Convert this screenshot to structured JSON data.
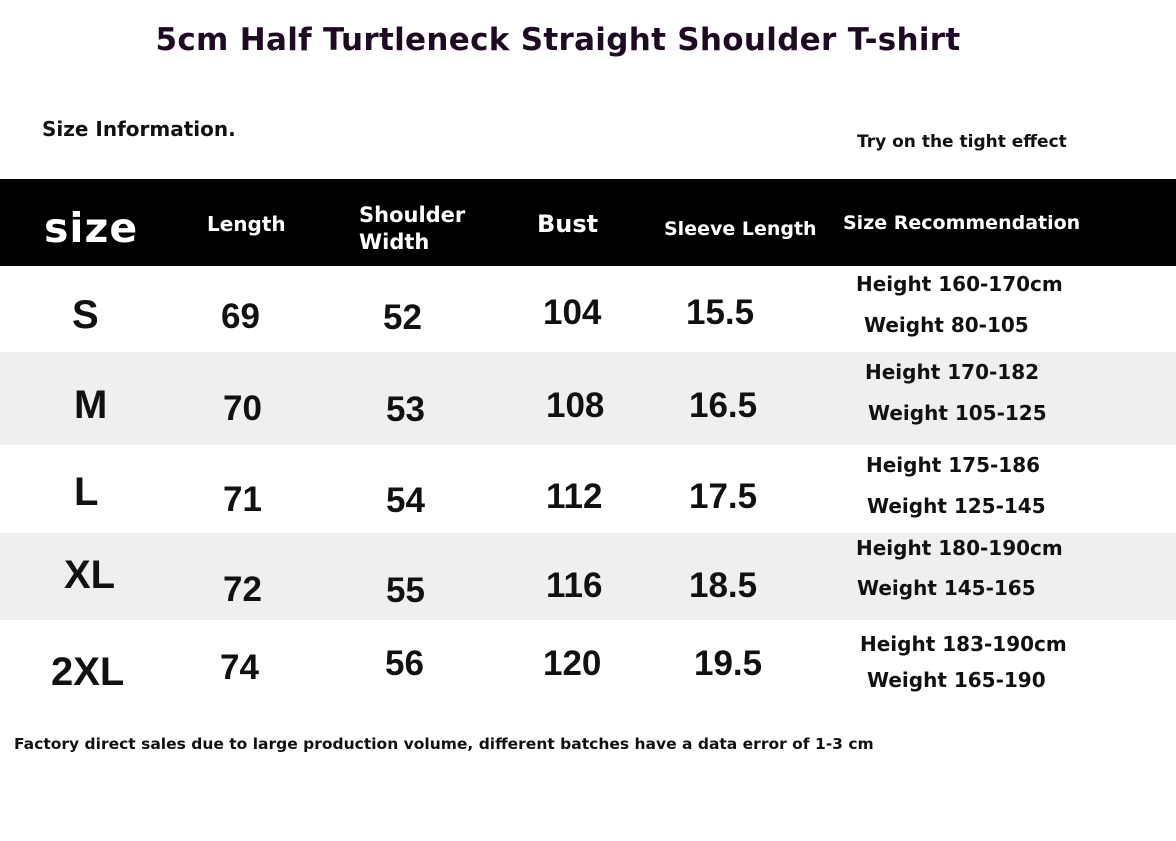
{
  "title": "5cm Half Turtleneck Straight Shoulder T-shirt",
  "size_info_label": "Size Information.",
  "try_on_label": "Try on the tight effect",
  "table": {
    "headers": {
      "size": "size",
      "length": "Length",
      "shoulder_width": "Shoulder Width",
      "bust": "Bust",
      "sleeve_length": "Sleeve Length",
      "size_recommendation": "Size Recommendation"
    },
    "rows": [
      {
        "size": "S",
        "length": "69",
        "shoulder": "52",
        "bust": "104",
        "sleeve": "15.5",
        "height": "Height 160-170cm",
        "weight": "Weight 80-105"
      },
      {
        "size": "M",
        "length": "70",
        "shoulder": "53",
        "bust": "108",
        "sleeve": "16.5",
        "height": "Height 170-182",
        "weight": "Weight 105-125"
      },
      {
        "size": "L",
        "length": "71",
        "shoulder": "54",
        "bust": "112",
        "sleeve": "17.5",
        "height": "Height 175-186",
        "weight": "Weight 125-145"
      },
      {
        "size": "XL",
        "length": "72",
        "shoulder": "55",
        "bust": "116",
        "sleeve": "18.5",
        "height": "Height 180-190cm",
        "weight": "Weight 145-165"
      },
      {
        "size": "2XL",
        "length": "74",
        "shoulder": "56",
        "bust": "120",
        "sleeve": "19.5",
        "height": "Height 183-190cm",
        "weight": "Weight 165-190"
      }
    ]
  },
  "footnote": "Factory direct sales due to large production volume, different batches have a data error of 1-3 cm",
  "colors": {
    "header_background": "#000000",
    "header_text": "#ffffff",
    "alternate_row": "#efefef",
    "title_text": "#1e0a22"
  }
}
